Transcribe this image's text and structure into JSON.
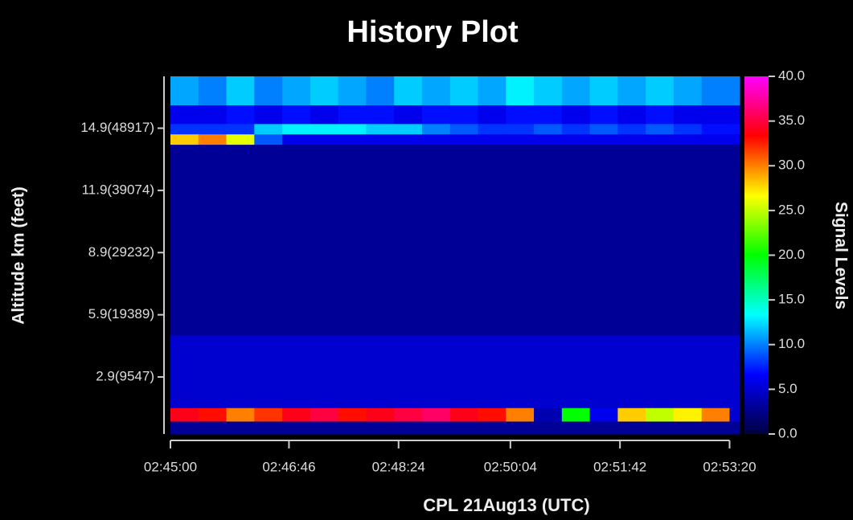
{
  "chart_data": {
    "type": "heatmap",
    "title": "History Plot",
    "x_label": "CPL 21Aug13 (UTC)",
    "y_label": "Altitude km (feet)",
    "colorbar_label": "Signal Levels",
    "xlim": [
      0,
      509
    ],
    "ylim": [
      0.15,
      17.4
    ],
    "xticks": [
      {
        "value": 0,
        "label": "02:45:00"
      },
      {
        "value": 106,
        "label": "02:46:46"
      },
      {
        "value": 204,
        "label": "02:48:24"
      },
      {
        "value": 304,
        "label": "02:50:04"
      },
      {
        "value": 402,
        "label": "02:51:42"
      },
      {
        "value": 500,
        "label": "02:53:20"
      }
    ],
    "yticks": [
      {
        "value": 2.9,
        "label": "2.9(9547)"
      },
      {
        "value": 5.9,
        "label": "5.9(19389)"
      },
      {
        "value": 8.9,
        "label": "8.9(29232)"
      },
      {
        "value": 11.9,
        "label": "11.9(39074)"
      },
      {
        "value": 14.9,
        "label": "14.9(48917)"
      }
    ],
    "x_bins": [
      0,
      25,
      50,
      75,
      100,
      125,
      150,
      175,
      200,
      225,
      250,
      275,
      300,
      325,
      350,
      375,
      400,
      425,
      450,
      475,
      500,
      509
    ],
    "y_bins": [
      17.4,
      16.0,
      15.1,
      14.6,
      14.1,
      4.9,
      1.4,
      0.75,
      0.15
    ],
    "z": [
      [
        11,
        10,
        12,
        10,
        11,
        12,
        11,
        10,
        12,
        11,
        12,
        11,
        13,
        12,
        11,
        12,
        11,
        12,
        11,
        10,
        10
      ],
      [
        6,
        6,
        7,
        6,
        7,
        6,
        7,
        7,
        6,
        7,
        7,
        6,
        7,
        7,
        6,
        7,
        6,
        7,
        6,
        6,
        6
      ],
      [
        8,
        8,
        8,
        12,
        13,
        13,
        13,
        12,
        12,
        10,
        9,
        8,
        8,
        9,
        8,
        9,
        8,
        9,
        8,
        7,
        7
      ],
      [
        28,
        30,
        26,
        9,
        6,
        6,
        6,
        6,
        6,
        6,
        6,
        6,
        6,
        6,
        6,
        6,
        6,
        6,
        6,
        6,
        6
      ],
      [
        3,
        3,
        3,
        3,
        3,
        3,
        3,
        3,
        3,
        3,
        3,
        3,
        3,
        3,
        3,
        3,
        3,
        3,
        3,
        3,
        3
      ],
      [
        5,
        5,
        5,
        5,
        5,
        5,
        5,
        5,
        5,
        5,
        5,
        5,
        5,
        5,
        5,
        5,
        5,
        5,
        5,
        5,
        5
      ],
      [
        34,
        33,
        30,
        32,
        34,
        35,
        33,
        34,
        35,
        36,
        34,
        33,
        30,
        4,
        20,
        6,
        28,
        25,
        27,
        30,
        5
      ],
      [
        3,
        3,
        3,
        3,
        3,
        3,
        3,
        3,
        3,
        3,
        3,
        3,
        3,
        3,
        3,
        3,
        3,
        3,
        3,
        3,
        3
      ]
    ],
    "zlim": [
      0,
      40
    ],
    "zticks": [
      {
        "value": 0,
        "label": "0.0"
      },
      {
        "value": 5,
        "label": "5.0"
      },
      {
        "value": 10,
        "label": "10.0"
      },
      {
        "value": 15,
        "label": "15.0"
      },
      {
        "value": 20,
        "label": "20.0"
      },
      {
        "value": 25,
        "label": "25.0"
      },
      {
        "value": 30,
        "label": "30.0"
      },
      {
        "value": 35,
        "label": "35.0"
      },
      {
        "value": 40,
        "label": "40.0"
      }
    ],
    "colorscale": [
      "#000040",
      "#0000ff",
      "#00ffff",
      "#00ff00",
      "#ffff00",
      "#ff0000",
      "#ff00ff"
    ]
  }
}
